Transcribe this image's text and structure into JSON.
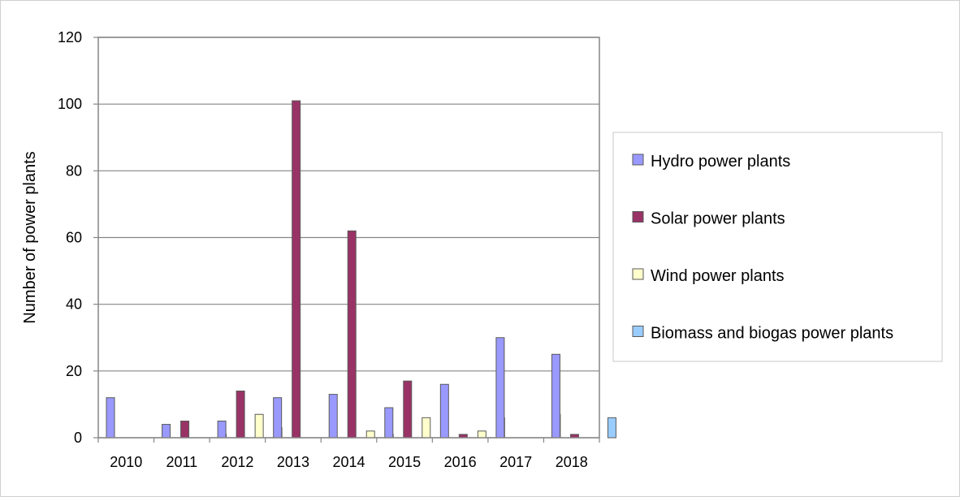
{
  "chart_data": {
    "type": "bar",
    "title": "",
    "xlabel": "",
    "ylabel": "Number of power plants",
    "categories": [
      "2010",
      "2011",
      "2012",
      "2013",
      "2014",
      "2015",
      "2016",
      "2017",
      "2018"
    ],
    "ylim": [
      0,
      120
    ],
    "yticks": [
      0,
      20,
      40,
      60,
      80,
      100,
      120
    ],
    "grid": true,
    "legend_position": "right",
    "series": [
      {
        "name": "Hydro power plants",
        "color": "#9999ff",
        "values": [
          12,
          4,
          5,
          12,
          13,
          9,
          16,
          30,
          25
        ]
      },
      {
        "name": "Solar power plants",
        "color": "#993366",
        "values": [
          0,
          5,
          14,
          101,
          62,
          17,
          1,
          0,
          1
        ]
      },
      {
        "name": "Wind power plants",
        "color": "#ffffcc",
        "values": [
          0,
          0,
          7,
          0,
          2,
          6,
          2,
          0,
          0
        ]
      },
      {
        "name": "Biomass and biogas power plants",
        "color": "#99ccff",
        "values": [
          0,
          1,
          3,
          0,
          1,
          0,
          6,
          7,
          6
        ]
      }
    ]
  }
}
